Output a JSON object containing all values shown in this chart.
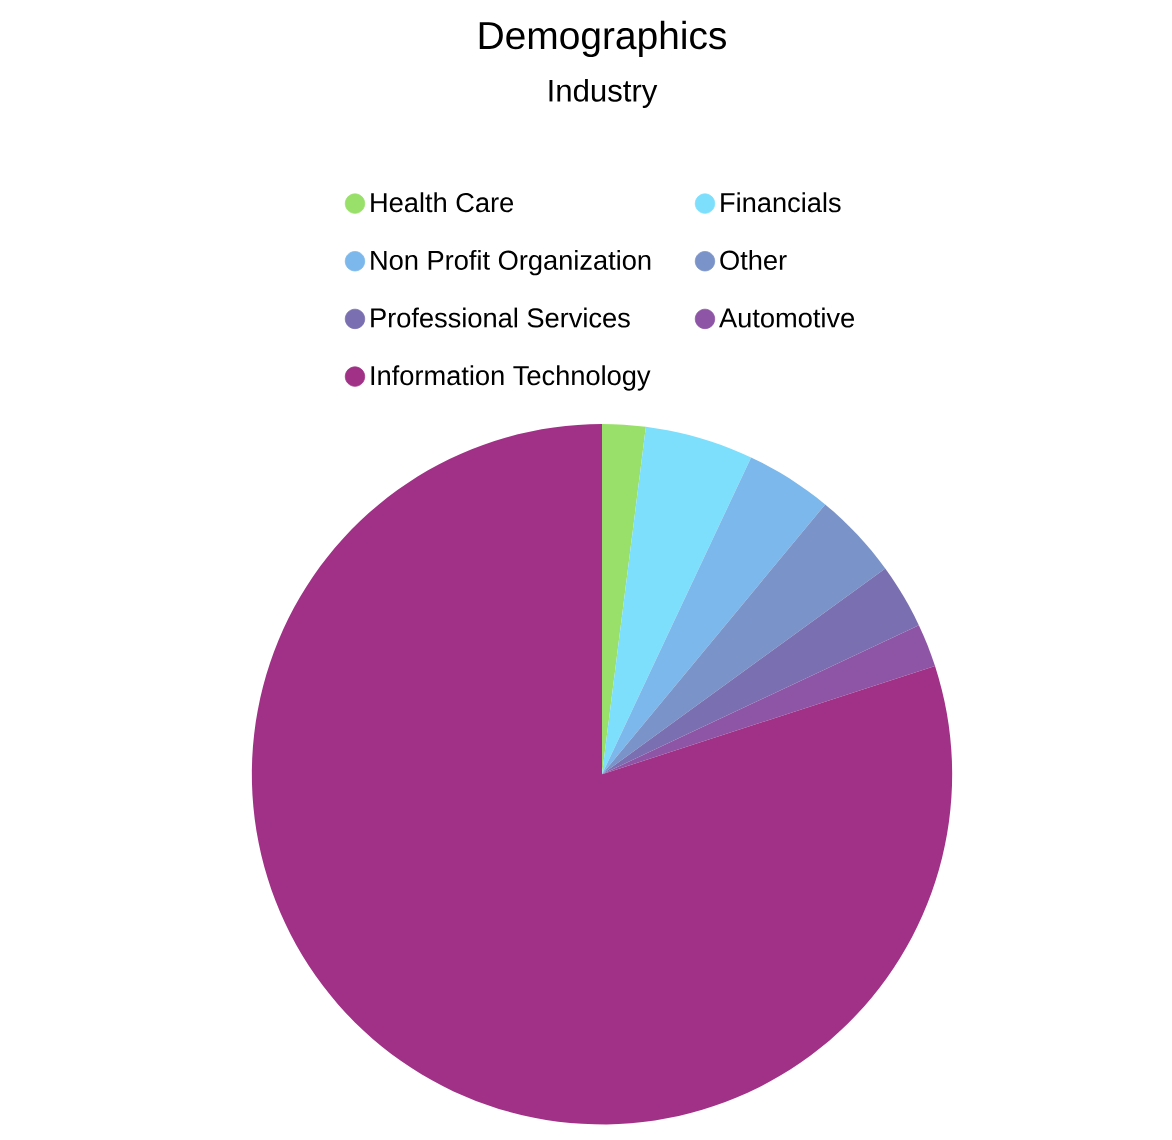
{
  "chart_data": {
    "type": "pie",
    "title": "Demographics",
    "subtitle": "Industry",
    "categories": [
      "Health Care",
      "Financials",
      "Non Profit Organization",
      "Other",
      "Professional Services",
      "Automotive",
      "Information Technology"
    ],
    "values": [
      2,
      5,
      4,
      4,
      3,
      2,
      80
    ],
    "colors": [
      "#99e06b",
      "#7ddffc",
      "#7cb8eb",
      "#7a93c8",
      "#7a6fb0",
      "#8e55a6",
      "#a03186"
    ],
    "legend": "top"
  }
}
